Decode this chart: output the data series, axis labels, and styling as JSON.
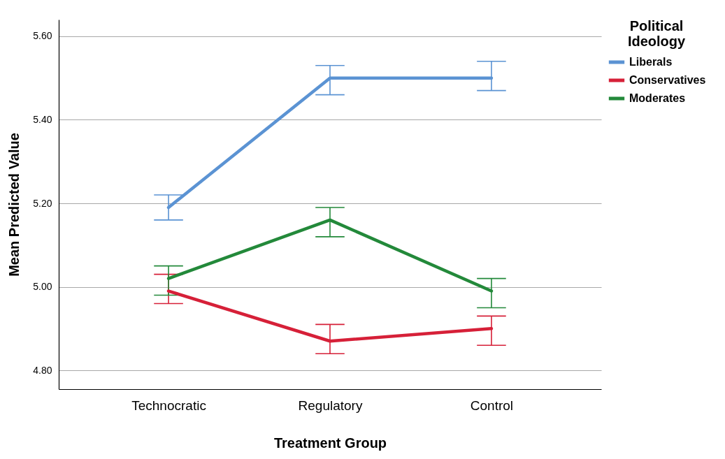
{
  "chart_data": {
    "type": "line",
    "xlabel": "Treatment Group",
    "ylabel": "Mean Predicted Value",
    "legend_title": "Political Ideology",
    "categories": [
      "Technocratic",
      "Regulatory",
      "Control"
    ],
    "series": [
      {
        "name": "Liberals",
        "color": "#5b93d3",
        "values": [
          5.19,
          5.5,
          5.5
        ],
        "errors": [
          [
            5.16,
            5.22
          ],
          [
            5.46,
            5.53
          ],
          [
            5.47,
            5.54
          ]
        ]
      },
      {
        "name": "Conservatives",
        "color": "#d62038",
        "values": [
          4.99,
          4.87,
          4.9
        ],
        "errors": [
          [
            4.96,
            5.03
          ],
          [
            4.84,
            4.91
          ],
          [
            4.86,
            4.93
          ]
        ]
      },
      {
        "name": "Moderates",
        "color": "#23893a",
        "values": [
          5.02,
          5.16,
          4.99
        ],
        "errors": [
          [
            4.98,
            5.05
          ],
          [
            5.12,
            5.19
          ],
          [
            4.95,
            5.02
          ]
        ]
      }
    ],
    "ylim": [
      4.755,
      5.64
    ],
    "yticks": [
      {
        "value": 4.8,
        "label": "4.80"
      },
      {
        "value": 5.0,
        "label": "5.00"
      },
      {
        "value": 5.2,
        "label": "5.20"
      },
      {
        "value": 5.4,
        "label": "5.40"
      },
      {
        "value": 5.6,
        "label": "5.60"
      }
    ],
    "grid": "y",
    "legend": "top right",
    "marker": "none",
    "line_style": "solid"
  }
}
